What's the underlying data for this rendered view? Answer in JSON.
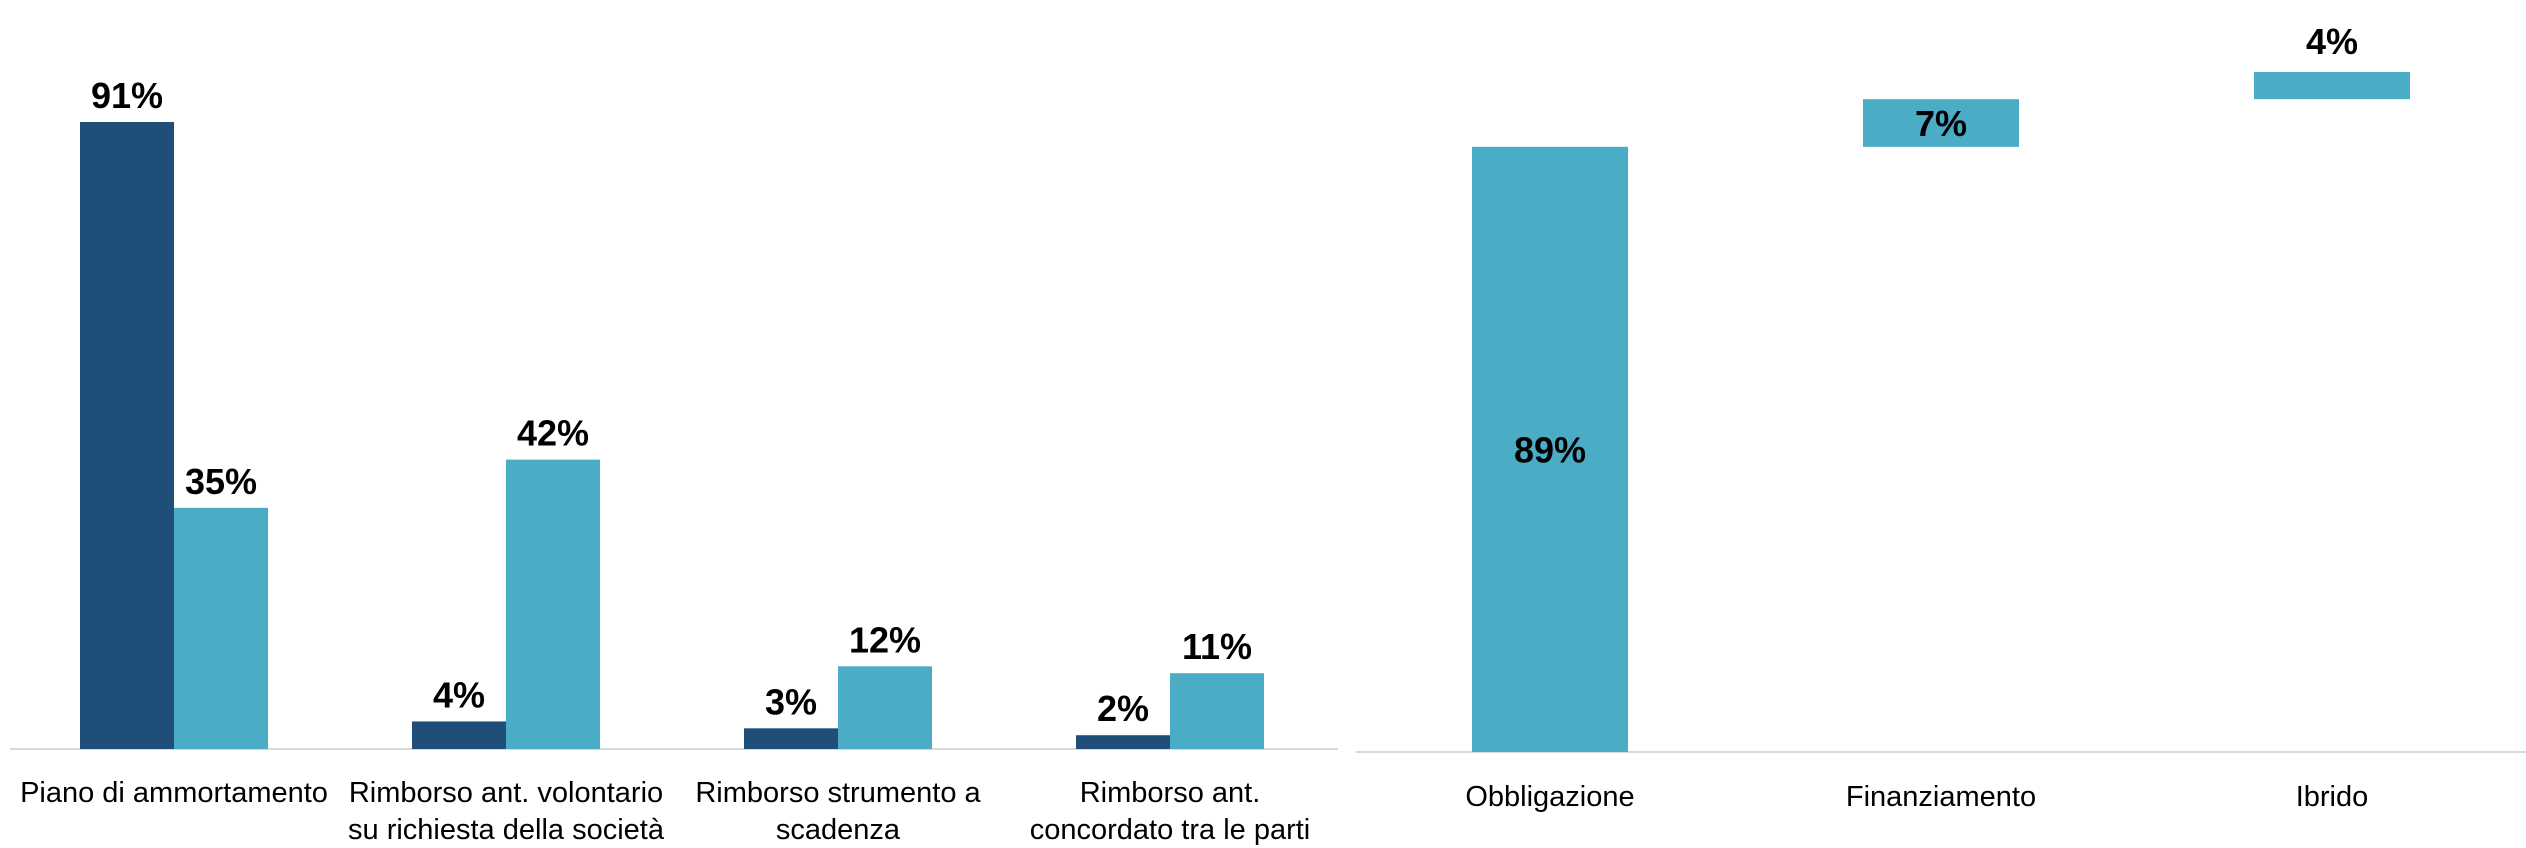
{
  "colors": {
    "dark": "#1f4e79",
    "light": "#4bacc6",
    "axis": "#d9d9d9"
  },
  "chart_data": [
    {
      "type": "bar",
      "categories": [
        [
          "Piano di ammortamento"
        ],
        [
          "Rimborso ant. volontario",
          "su richiesta della società"
        ],
        [
          "Rimborso strumento a",
          "scadenza"
        ],
        [
          "Rimborso ant.",
          "concordato tra le parti"
        ]
      ],
      "series": [
        {
          "values": [
            91,
            4,
            3,
            2
          ],
          "color": "dark"
        },
        {
          "values": [
            35,
            42,
            12,
            11
          ],
          "color": "light"
        }
      ],
      "value_suffix": "%",
      "ylim": [
        0,
        100
      ]
    },
    {
      "type": "waterfall",
      "categories": [
        "Obbligazione",
        "Finanziamento",
        "Ibrido"
      ],
      "values": [
        89,
        7,
        4
      ],
      "value_suffix": "%",
      "color": "light",
      "ylim": [
        0,
        100
      ]
    }
  ]
}
